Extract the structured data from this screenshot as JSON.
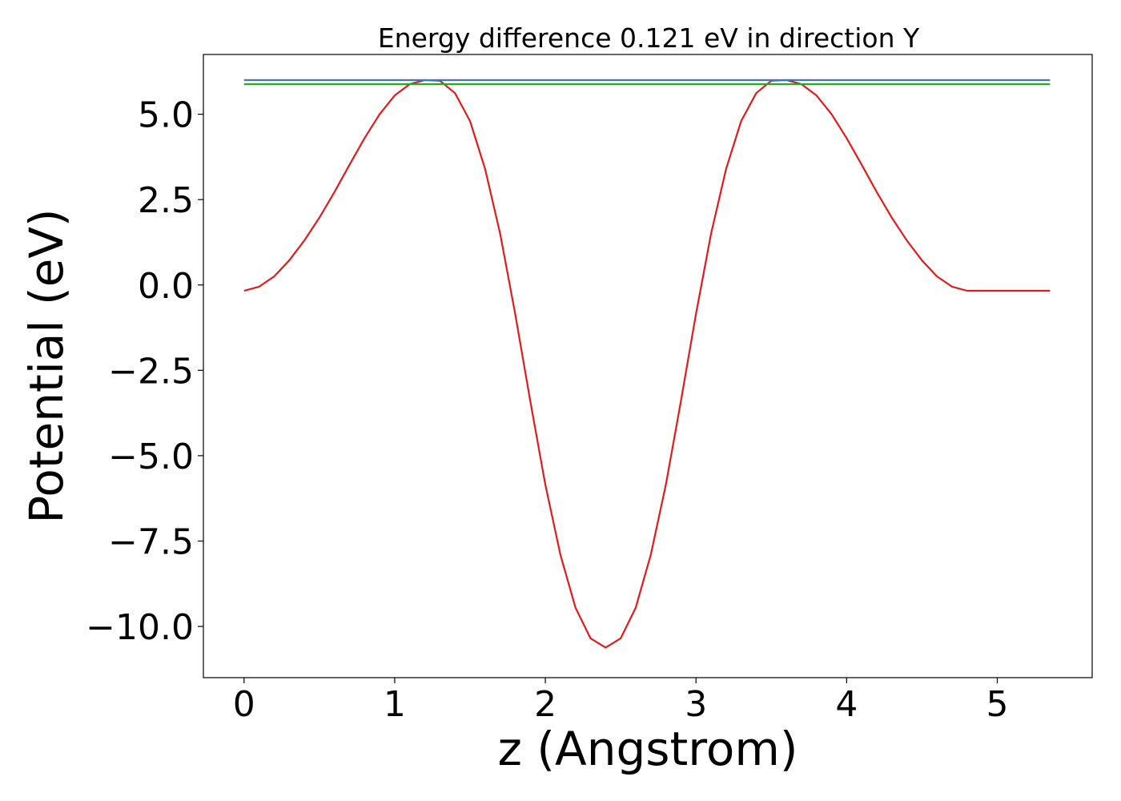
{
  "chart_data": {
    "type": "line",
    "title": "Energy difference 0.121 eV in direction Y",
    "xlabel": "z (Angstrom)",
    "ylabel": "Potential (eV)",
    "xlim": [
      -0.27,
      5.63
    ],
    "ylim": [
      -11.5,
      6.75
    ],
    "xticks": [
      0,
      1,
      2,
      3,
      4,
      5
    ],
    "xtick_labels": [
      "0",
      "1",
      "2",
      "3",
      "4",
      "5"
    ],
    "yticks": [
      5.0,
      2.5,
      0.0,
      -2.5,
      -5.0,
      -7.5,
      -10.0
    ],
    "ytick_labels": [
      "5.0",
      "2.5",
      "0.0",
      "−2.5",
      "−5.0",
      "−7.5",
      "−10.0"
    ],
    "grid": false,
    "series": [
      {
        "color": "#e31a1c",
        "x": [
          0.0,
          0.1,
          0.2,
          0.3,
          0.4,
          0.5,
          0.6,
          0.7,
          0.8,
          0.9,
          1.0,
          1.1,
          1.2,
          1.3,
          1.4,
          1.5,
          1.6,
          1.7,
          1.8,
          1.9,
          2.0,
          2.1,
          2.2,
          2.3,
          2.4,
          2.5,
          2.6,
          2.7,
          2.8,
          2.9,
          3.0,
          3.1,
          3.2,
          3.3,
          3.4,
          3.5,
          3.6,
          3.7,
          3.8,
          3.9,
          4.0,
          4.1,
          4.2,
          4.3,
          4.4,
          4.5,
          4.6,
          4.7,
          4.8,
          4.9,
          5.0,
          5.1,
          5.2,
          5.3,
          5.35
        ],
        "y": [
          -0.17,
          -0.05,
          0.25,
          0.72,
          1.3,
          1.97,
          2.72,
          3.52,
          4.3,
          5.0,
          5.55,
          5.88,
          6.0,
          5.98,
          5.62,
          4.8,
          3.4,
          1.5,
          -0.85,
          -3.4,
          -5.85,
          -7.9,
          -9.45,
          -10.35,
          -10.62,
          -10.35,
          -9.45,
          -7.9,
          -5.85,
          -3.4,
          -0.85,
          1.5,
          3.4,
          4.8,
          5.62,
          5.98,
          6.0,
          5.88,
          5.55,
          5.0,
          4.3,
          3.52,
          2.72,
          1.97,
          1.3,
          0.72,
          0.25,
          -0.05,
          -0.17,
          -0.17,
          -0.17,
          -0.17,
          -0.17,
          -0.17,
          -0.17
        ]
      },
      {
        "color": "#4472c4",
        "x": [
          0.0,
          5.35
        ],
        "y": [
          6.0,
          6.0
        ]
      },
      {
        "color": "#33a02c",
        "x": [
          0.0,
          5.35
        ],
        "y": [
          5.879,
          5.879
        ]
      }
    ]
  }
}
